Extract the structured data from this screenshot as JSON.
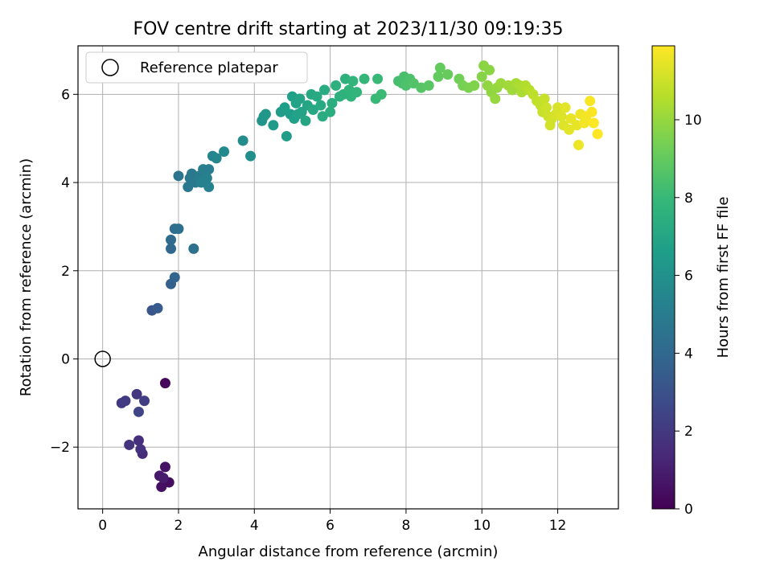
{
  "chart_data": {
    "type": "scatter",
    "title": "FOV centre drift starting at 2023/11/30 09:19:35",
    "xlabel": "Angular distance from reference (arcmin)",
    "ylabel": "Rotation from reference (arcmin)",
    "xlim": [
      -0.65,
      13.6
    ],
    "ylim": [
      -3.4,
      7.1
    ],
    "xticks": [
      0,
      2,
      4,
      6,
      8,
      10,
      12
    ],
    "yticks": [
      -2,
      0,
      2,
      4,
      6
    ],
    "xtick_labels": [
      "0",
      "2",
      "4",
      "6",
      "8",
      "10",
      "12"
    ],
    "ytick_labels": [
      "−2",
      "0",
      "2",
      "4",
      "6"
    ],
    "grid": true,
    "legend": {
      "location": "upper-left",
      "label": "Reference platepar"
    },
    "reference": {
      "x": 0,
      "y": 0
    },
    "colorbar": {
      "label": "Hours from first FF file",
      "range": [
        0,
        11.9
      ],
      "ticks": [
        0,
        2,
        4,
        6,
        8,
        10
      ],
      "tick_labels": [
        "0",
        "2",
        "4",
        "6",
        "8",
        "10"
      ],
      "colormap_stops": [
        "#440154",
        "#482878",
        "#3e4989",
        "#31688e",
        "#26828e",
        "#1f9e89",
        "#35b779",
        "#6ece58",
        "#b5de2b",
        "#fde725"
      ]
    },
    "points": [
      [
        1.65,
        -0.55,
        0.2
      ],
      [
        1.75,
        -2.8,
        0.4
      ],
      [
        1.55,
        -2.9,
        0.5
      ],
      [
        1.65,
        -2.45,
        0.6
      ],
      [
        1.5,
        -2.65,
        0.8
      ],
      [
        1.6,
        -2.7,
        0.9
      ],
      [
        1.05,
        -2.15,
        1.5
      ],
      [
        0.95,
        -1.85,
        1.6
      ],
      [
        1.0,
        -2.05,
        1.7
      ],
      [
        0.7,
        -1.95,
        1.8
      ],
      [
        0.9,
        -0.8,
        1.9
      ],
      [
        0.5,
        -1.0,
        2.0
      ],
      [
        0.6,
        -0.95,
        2.1
      ],
      [
        1.1,
        -0.95,
        2.2
      ],
      [
        0.95,
        -1.2,
        2.5
      ],
      [
        1.3,
        1.1,
        3.2
      ],
      [
        1.45,
        1.15,
        3.4
      ],
      [
        1.8,
        1.7,
        3.7
      ],
      [
        1.9,
        1.85,
        3.8
      ],
      [
        1.8,
        2.5,
        4.0
      ],
      [
        1.8,
        2.7,
        4.1
      ],
      [
        1.9,
        2.95,
        4.2
      ],
      [
        2.0,
        2.95,
        4.3
      ],
      [
        2.4,
        2.5,
        4.4
      ],
      [
        2.0,
        4.15,
        4.6
      ],
      [
        2.3,
        4.1,
        4.7
      ],
      [
        2.35,
        4.2,
        4.8
      ],
      [
        2.25,
        3.9,
        4.8
      ],
      [
        2.45,
        4.0,
        4.9
      ],
      [
        2.55,
        4.15,
        5.0
      ],
      [
        2.65,
        4.3,
        5.1
      ],
      [
        2.8,
        4.3,
        5.1
      ],
      [
        2.6,
        4.0,
        5.2
      ],
      [
        2.75,
        4.1,
        5.2
      ],
      [
        2.8,
        3.9,
        5.3
      ],
      [
        2.9,
        4.6,
        5.4
      ],
      [
        3.0,
        4.55,
        5.5
      ],
      [
        3.2,
        4.7,
        5.6
      ],
      [
        3.7,
        4.95,
        5.8
      ],
      [
        3.9,
        4.6,
        5.9
      ],
      [
        4.2,
        5.4,
        6.1
      ],
      [
        4.25,
        5.5,
        6.2
      ],
      [
        4.3,
        5.55,
        6.3
      ],
      [
        4.5,
        5.3,
        6.4
      ],
      [
        4.7,
        5.6,
        6.5
      ],
      [
        4.85,
        5.05,
        6.5
      ],
      [
        4.8,
        5.7,
        6.6
      ],
      [
        4.95,
        5.55,
        6.6
      ],
      [
        5.0,
        5.95,
        6.7
      ],
      [
        5.05,
        5.45,
        6.7
      ],
      [
        5.1,
        5.8,
        6.8
      ],
      [
        5.15,
        5.55,
        6.8
      ],
      [
        5.2,
        5.9,
        6.9
      ],
      [
        5.25,
        5.6,
        6.9
      ],
      [
        5.35,
        5.4,
        7.0
      ],
      [
        5.4,
        5.75,
        7.0
      ],
      [
        5.5,
        6.0,
        7.1
      ],
      [
        5.55,
        5.65,
        7.1
      ],
      [
        5.65,
        5.95,
        7.2
      ],
      [
        5.75,
        5.75,
        7.2
      ],
      [
        5.8,
        5.5,
        7.3
      ],
      [
        5.85,
        6.1,
        7.3
      ],
      [
        6.0,
        5.6,
        7.4
      ],
      [
        6.05,
        5.8,
        7.4
      ],
      [
        6.15,
        6.2,
        7.5
      ],
      [
        6.25,
        5.95,
        7.5
      ],
      [
        6.35,
        6.0,
        7.6
      ],
      [
        6.4,
        6.35,
        7.6
      ],
      [
        6.5,
        6.1,
        7.7
      ],
      [
        6.55,
        5.95,
        7.7
      ],
      [
        6.6,
        6.3,
        7.8
      ],
      [
        6.7,
        6.05,
        7.8
      ],
      [
        6.9,
        6.35,
        7.9
      ],
      [
        7.2,
        5.9,
        8.0
      ],
      [
        7.25,
        6.35,
        8.0
      ],
      [
        7.35,
        6.0,
        8.1
      ],
      [
        7.8,
        6.3,
        8.3
      ],
      [
        7.9,
        6.25,
        8.4
      ],
      [
        7.95,
        6.4,
        8.4
      ],
      [
        8.0,
        6.2,
        8.5
      ],
      [
        8.1,
        6.35,
        8.5
      ],
      [
        8.2,
        6.25,
        8.6
      ],
      [
        8.4,
        6.15,
        8.7
      ],
      [
        8.6,
        6.2,
        8.8
      ],
      [
        8.85,
        6.4,
        9.0
      ],
      [
        8.9,
        6.6,
        9.0
      ],
      [
        9.1,
        6.45,
        9.1
      ],
      [
        9.4,
        6.35,
        9.3
      ],
      [
        9.5,
        6.2,
        9.4
      ],
      [
        9.65,
        6.15,
        9.5
      ],
      [
        9.8,
        6.2,
        9.6
      ],
      [
        10.0,
        6.4,
        9.7
      ],
      [
        10.05,
        6.65,
        9.8
      ],
      [
        10.2,
        6.55,
        9.8
      ],
      [
        10.15,
        6.2,
        9.9
      ],
      [
        10.25,
        6.05,
        9.9
      ],
      [
        10.35,
        5.9,
        10.0
      ],
      [
        10.4,
        6.15,
        10.0
      ],
      [
        10.5,
        6.25,
        10.1
      ],
      [
        10.7,
        6.2,
        10.2
      ],
      [
        10.8,
        6.1,
        10.2
      ],
      [
        10.9,
        6.25,
        10.3
      ],
      [
        11.0,
        6.2,
        10.4
      ],
      [
        11.05,
        6.05,
        10.4
      ],
      [
        11.15,
        6.2,
        10.5
      ],
      [
        11.25,
        6.1,
        10.6
      ],
      [
        11.35,
        6.0,
        10.7
      ],
      [
        11.45,
        5.85,
        10.8
      ],
      [
        11.55,
        5.75,
        10.8
      ],
      [
        11.6,
        5.6,
        10.9
      ],
      [
        11.65,
        5.9,
        10.9
      ],
      [
        11.7,
        5.7,
        11.0
      ],
      [
        11.75,
        5.5,
        11.0
      ],
      [
        11.8,
        5.3,
        11.1
      ],
      [
        11.85,
        5.45,
        11.1
      ],
      [
        11.95,
        5.55,
        11.2
      ],
      [
        12.0,
        5.7,
        11.2
      ],
      [
        12.1,
        5.5,
        11.3
      ],
      [
        12.15,
        5.3,
        11.3
      ],
      [
        12.2,
        5.7,
        11.4
      ],
      [
        12.3,
        5.2,
        11.4
      ],
      [
        12.35,
        5.45,
        11.5
      ],
      [
        12.5,
        5.3,
        11.5
      ],
      [
        12.55,
        4.85,
        11.6
      ],
      [
        12.6,
        5.55,
        11.6
      ],
      [
        12.7,
        5.35,
        11.7
      ],
      [
        12.75,
        5.5,
        11.7
      ],
      [
        12.85,
        5.85,
        11.8
      ],
      [
        12.9,
        5.6,
        11.8
      ],
      [
        12.95,
        5.35,
        11.9
      ],
      [
        13.05,
        5.1,
        11.9
      ]
    ]
  }
}
